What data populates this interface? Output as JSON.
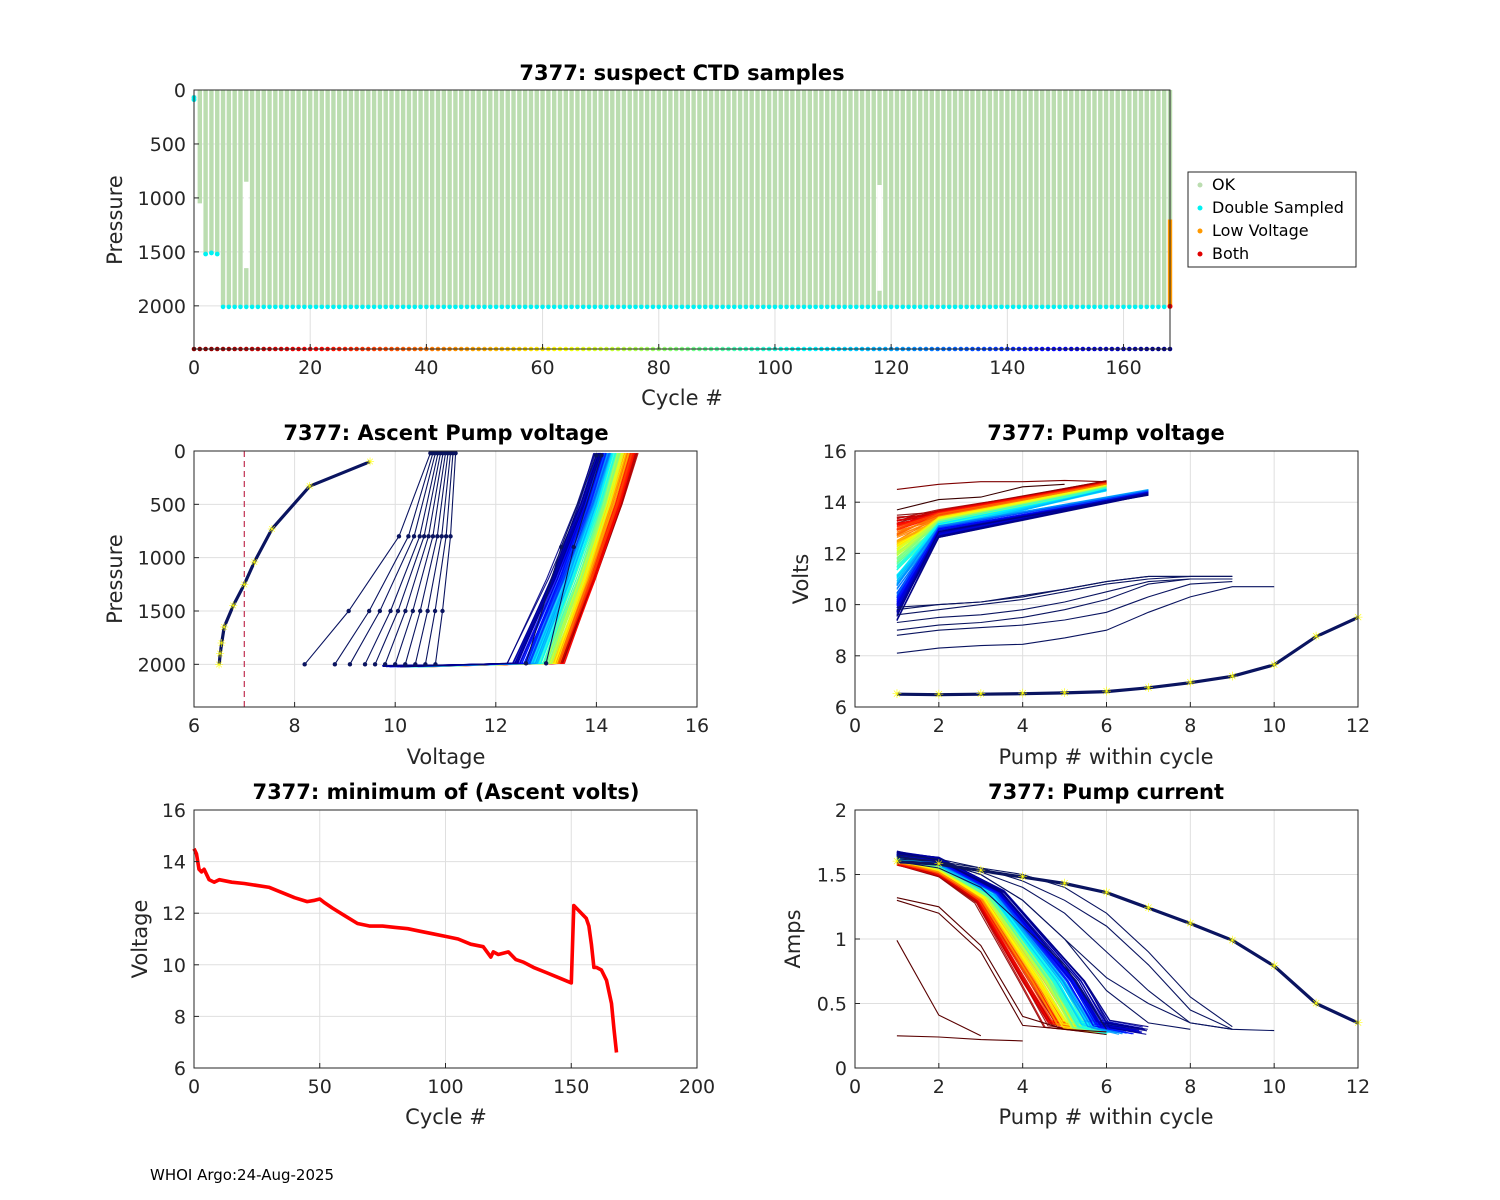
{
  "footer": "WHOI Argo:24-Aug-2025",
  "colors": {
    "ok": "#bbddb0",
    "double": "#00f2f2",
    "low": "#ff9900",
    "both": "#e00000",
    "yellow": "#ffff00",
    "navy": "#0a1460",
    "red": "#ff0000",
    "vline": "#c03050"
  },
  "chart_data": [
    {
      "id": "suspect",
      "type": "scatter",
      "title": "7377: suspect CTD samples",
      "xlabel": "Cycle #",
      "ylabel": "Pressure",
      "xlim": [
        0,
        168
      ],
      "ylim": [
        0,
        2400
      ],
      "y_reversed": true,
      "xticks": [
        0,
        20,
        40,
        60,
        80,
        100,
        120,
        140,
        160
      ],
      "yticks": [
        0,
        500,
        1000,
        1500,
        2000
      ],
      "legend": [
        "OK",
        "Double Sampled",
        "Low Voltage",
        "Both"
      ],
      "legend_location": "outside-right",
      "profile_depth": 2000,
      "double_sampled_depth": 2010,
      "early_cycles": [
        {
          "cycle": 0,
          "top": 50,
          "bottom": 100,
          "double": [
            70,
            90
          ]
        },
        {
          "cycle": 1,
          "top": 0,
          "bottom": 1050,
          "double": []
        },
        {
          "cycle": 2,
          "top": 0,
          "bottom": 1520,
          "double": [
            1520
          ]
        },
        {
          "cycle": 3,
          "top": 0,
          "bottom": 1510,
          "double": [
            1510
          ]
        },
        {
          "cycle": 4,
          "top": 0,
          "bottom": 1520,
          "double": [
            1520
          ]
        }
      ],
      "gap_cycles": [
        {
          "cycle": 9,
          "top": 850,
          "bottom": 1650
        },
        {
          "cycle": 118,
          "top": 880,
          "bottom": 1860
        }
      ],
      "low_voltage_cycle": {
        "cycle": 168,
        "top": 1200,
        "bottom": 2000
      },
      "both_point": {
        "cycle": 168,
        "pressure": 2005
      },
      "cycle_marker_pressure": 2400
    },
    {
      "id": "ascent",
      "type": "line",
      "title": "7377: Ascent Pump voltage",
      "xlabel": "Voltage",
      "ylabel": "Pressure",
      "xlim": [
        6,
        16
      ],
      "ylim": [
        0,
        2400
      ],
      "y_reversed": true,
      "xticks": [
        6,
        8,
        10,
        12,
        14,
        16
      ],
      "yticks": [
        0,
        500,
        1000,
        1500,
        2000
      ],
      "threshold_voltage": 7,
      "last_profile": {
        "v": [
          6.5,
          6.52,
          6.55,
          6.6,
          6.78,
          7.0,
          7.2,
          7.55,
          8.3,
          9.5
        ],
        "p": [
          2000,
          1900,
          1800,
          1650,
          1450,
          1250,
          1040,
          730,
          330,
          100
        ]
      },
      "mid_profiles": {
        "v0_range": [
          8.2,
          10.8
        ],
        "v_top_range": [
          10.7,
          11.2
        ]
      },
      "main_profiles": {
        "v_bottom_range": [
          12.3,
          13.3
        ],
        "v_top_range": [
          14.0,
          14.8
        ]
      }
    },
    {
      "id": "pump_voltage",
      "type": "line",
      "title": "7377: Pump voltage",
      "xlabel": "Pump # within cycle",
      "ylabel": "Volts",
      "xlim": [
        0,
        12
      ],
      "ylim": [
        6,
        16
      ],
      "xticks": [
        0,
        2,
        4,
        6,
        8,
        10,
        12
      ],
      "yticks": [
        6,
        8,
        10,
        12,
        14,
        16
      ],
      "last_cycle": {
        "x": [
          1,
          2,
          3,
          4,
          5,
          6,
          7,
          8,
          9,
          10,
          11,
          12
        ],
        "y": [
          6.5,
          6.48,
          6.5,
          6.52,
          6.55,
          6.6,
          6.75,
          6.95,
          7.2,
          7.65,
          8.75,
          9.5
        ]
      },
      "low_group": [
        {
          "x": [
            1,
            2,
            3,
            4,
            5,
            6,
            7,
            8,
            9,
            10
          ],
          "y": [
            8.1,
            8.3,
            8.4,
            8.45,
            8.7,
            9.0,
            9.7,
            10.3,
            10.7,
            10.7
          ]
        },
        {
          "x": [
            1,
            2,
            3,
            4,
            5,
            6,
            7,
            8,
            9
          ],
          "y": [
            8.8,
            9.0,
            9.1,
            9.2,
            9.4,
            9.7,
            10.3,
            10.8,
            10.9
          ]
        },
        {
          "x": [
            1,
            2,
            3,
            4,
            5,
            6,
            7,
            8,
            9
          ],
          "y": [
            9.0,
            9.2,
            9.3,
            9.5,
            9.8,
            10.2,
            10.8,
            11.0,
            11.0
          ]
        },
        {
          "x": [
            1,
            2,
            3,
            4,
            5,
            6,
            7,
            8,
            9
          ],
          "y": [
            9.3,
            9.5,
            9.6,
            9.8,
            10.1,
            10.5,
            10.9,
            11.0,
            11.0
          ]
        },
        {
          "x": [
            1,
            2,
            3,
            4,
            5,
            6,
            7,
            8,
            9
          ],
          "y": [
            9.6,
            9.8,
            10.0,
            10.2,
            10.5,
            10.8,
            11.0,
            11.1,
            11.1
          ]
        },
        {
          "x": [
            1,
            2,
            3,
            4,
            5,
            6,
            7,
            8,
            9
          ],
          "y": [
            9.8,
            10.0,
            10.1,
            10.3,
            10.6,
            10.9,
            11.1,
            11.1,
            11.1
          ]
        },
        {
          "x": [
            1,
            2,
            3,
            4,
            5,
            6,
            7,
            8,
            9
          ],
          "y": [
            9.9,
            10.0,
            10.1,
            10.35,
            10.6,
            10.9,
            11.1,
            11.1,
            11.1
          ]
        }
      ]
    },
    {
      "id": "min_volts",
      "type": "line",
      "title": "7377: minimum of (Ascent volts)",
      "xlabel": "Cycle #",
      "ylabel": "Voltage",
      "xlim": [
        0,
        200
      ],
      "ylim": [
        6,
        16
      ],
      "xticks": [
        0,
        50,
        100,
        150,
        200
      ],
      "yticks": [
        6,
        8,
        10,
        12,
        14,
        16
      ],
      "x": [
        0,
        1,
        2,
        3,
        4,
        6,
        8,
        10,
        15,
        20,
        30,
        35,
        40,
        45,
        48,
        50,
        52,
        55,
        60,
        65,
        70,
        75,
        80,
        85,
        90,
        95,
        100,
        105,
        110,
        115,
        118,
        119,
        121,
        125,
        128,
        131,
        135,
        140,
        145,
        150,
        151,
        153,
        156,
        157,
        158,
        159,
        160,
        162,
        164,
        166,
        167,
        168
      ],
      "y": [
        14.5,
        14.3,
        13.7,
        13.6,
        13.7,
        13.3,
        13.2,
        13.3,
        13.2,
        13.15,
        13.0,
        12.8,
        12.6,
        12.45,
        12.5,
        12.55,
        12.4,
        12.2,
        11.9,
        11.6,
        11.5,
        11.5,
        11.45,
        11.4,
        11.3,
        11.2,
        11.1,
        11.0,
        10.8,
        10.7,
        10.3,
        10.5,
        10.4,
        10.5,
        10.2,
        10.1,
        9.9,
        9.7,
        9.5,
        9.3,
        12.3,
        12.1,
        11.8,
        11.5,
        10.8,
        9.9,
        9.9,
        9.8,
        9.4,
        8.5,
        7.5,
        6.6
      ]
    },
    {
      "id": "pump_current",
      "type": "line",
      "title": "7377: Pump current",
      "xlabel": "Pump # within cycle",
      "ylabel": "Amps",
      "xlim": [
        0,
        12
      ],
      "ylim": [
        0,
        2
      ],
      "xticks": [
        0,
        2,
        4,
        6,
        8,
        10,
        12
      ],
      "yticks": [
        0,
        0.5,
        1,
        1.5,
        2
      ],
      "ytick_labels": [
        "0",
        "0.5",
        "1",
        "1.5",
        "2"
      ],
      "last_cycle": {
        "x": [
          1,
          2,
          3,
          4,
          5,
          6,
          7,
          8,
          9,
          10,
          11,
          12
        ],
        "y": [
          1.6,
          1.58,
          1.53,
          1.48,
          1.43,
          1.36,
          1.24,
          1.12,
          0.99,
          0.79,
          0.5,
          0.35
        ]
      },
      "low_group": [
        {
          "x": [
            1,
            2,
            3,
            4,
            5,
            6
          ],
          "y": [
            1.6,
            1.55,
            1.4,
            1.1,
            0.8,
            0.3
          ]
        },
        {
          "x": [
            1,
            2,
            3,
            4,
            5,
            6,
            7,
            8,
            9,
            10
          ],
          "y": [
            1.62,
            1.6,
            1.5,
            1.3,
            1.0,
            0.7,
            0.5,
            0.35,
            0.3,
            0.29
          ]
        },
        {
          "x": [
            1,
            2,
            3,
            4,
            5,
            6,
            7,
            8,
            9
          ],
          "y": [
            1.63,
            1.6,
            1.55,
            1.45,
            1.3,
            1.1,
            0.8,
            0.45,
            0.3
          ]
        },
        {
          "x": [
            1,
            2,
            3,
            4,
            5,
            6,
            7,
            8,
            9
          ],
          "y": [
            1.64,
            1.6,
            1.52,
            1.4,
            1.2,
            0.9,
            0.6,
            0.35,
            0.3
          ]
        },
        {
          "x": [
            1,
            2,
            3,
            4,
            5,
            6,
            7,
            8,
            9
          ],
          "y": [
            1.65,
            1.62,
            1.55,
            1.5,
            1.4,
            1.2,
            0.9,
            0.55,
            0.32
          ]
        },
        {
          "x": [
            1,
            2,
            3,
            4,
            5,
            6,
            7,
            8
          ],
          "y": [
            1.64,
            1.6,
            1.5,
            1.3,
            1.0,
            0.6,
            0.35,
            0.3
          ]
        }
      ],
      "dark_outliers": [
        {
          "x": [
            1,
            2,
            3,
            4,
            5,
            6
          ],
          "y": [
            1.3,
            1.2,
            0.9,
            0.33,
            0.3,
            0.28
          ]
        },
        {
          "x": [
            1,
            2,
            3,
            4,
            5,
            6
          ],
          "y": [
            1.32,
            1.25,
            0.95,
            0.4,
            0.3,
            0.26
          ]
        },
        {
          "x": [
            1,
            2,
            3
          ],
          "y": [
            0.99,
            0.41,
            0.25
          ]
        },
        {
          "x": [
            1,
            2,
            3,
            4
          ],
          "y": [
            0.25,
            0.24,
            0.22,
            0.21
          ]
        }
      ]
    }
  ]
}
